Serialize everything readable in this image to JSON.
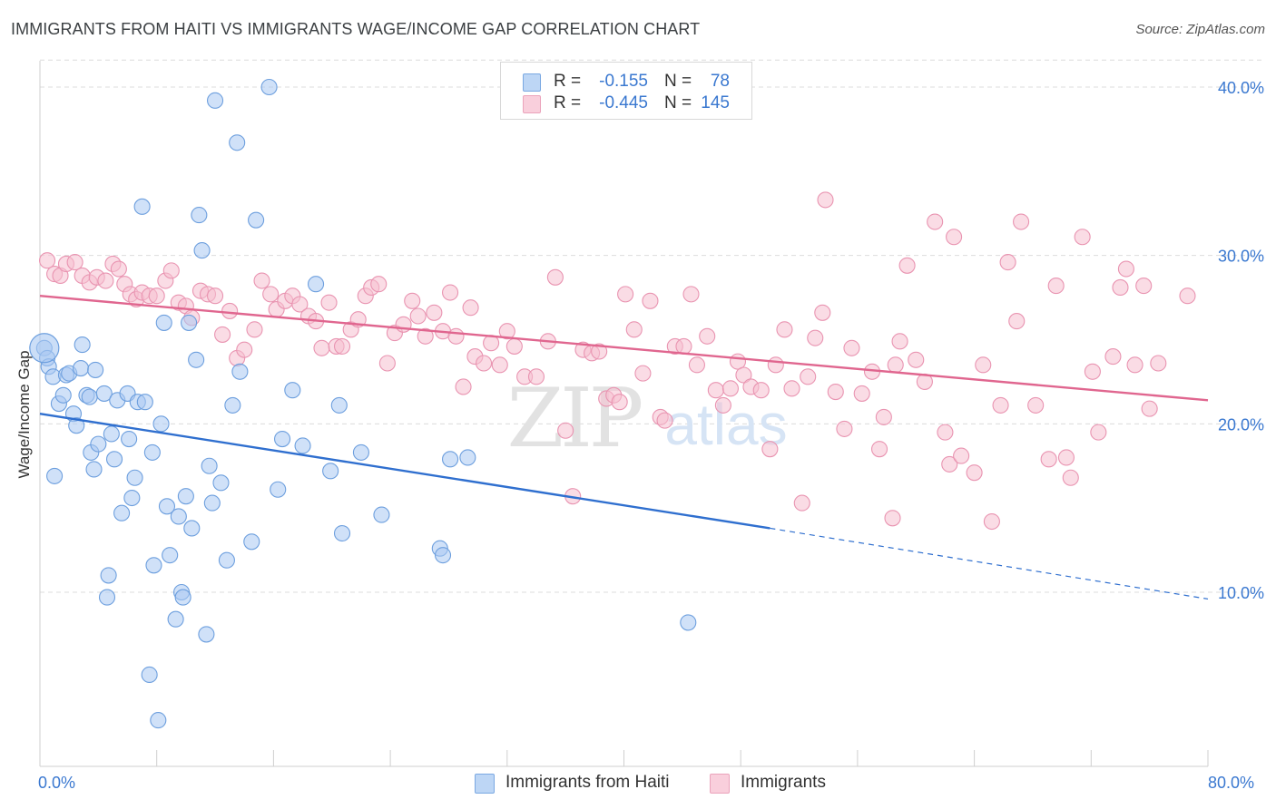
{
  "header": {
    "title": "IMMIGRANTS FROM HAITI VS IMMIGRANTS WAGE/INCOME GAP CORRELATION CHART",
    "source": "Source: ZipAtlas.com"
  },
  "legend": {
    "rows": [
      {
        "r_label": "R =",
        "r_value": "-0.155",
        "n_label": "N =",
        "n_value": "78"
      },
      {
        "r_label": "R =",
        "r_value": "-0.445",
        "n_label": "N =",
        "n_value": "145"
      }
    ]
  },
  "watermark": {
    "zip": "ZIP",
    "atlas": "atlas"
  },
  "x_axis": {
    "min_label": "0.0%",
    "max_label": "80.0%"
  },
  "y_axis": {
    "label": "Wage/Income Gap",
    "ticks": [
      "10.0%",
      "20.0%",
      "30.0%",
      "40.0%"
    ]
  },
  "bottom_legend": {
    "series1": "Immigrants from Haiti",
    "series2": "Immigrants"
  },
  "colors": {
    "blue_fill": "#a9c8f2",
    "blue_stroke": "#6d9fde",
    "blue_line": "#2f6fcf",
    "pink_fill": "#f6bfd0",
    "pink_stroke": "#e994b1",
    "pink_line": "#e0668f",
    "tick_text": "#3a78d0",
    "grid": "#dcdcdc"
  },
  "chart_data": {
    "type": "scatter",
    "title": "IMMIGRANTS FROM HAITI VS IMMIGRANTS WAGE/INCOME GAP CORRELATION CHART",
    "xlabel": "",
    "ylabel": "Wage/Income Gap",
    "xlim": [
      0,
      80
    ],
    "ylim": [
      0,
      42
    ],
    "yticks": [
      10,
      20,
      30,
      40
    ],
    "grid": true,
    "series": [
      {
        "name": "Immigrants from Haiti",
        "r": -0.155,
        "n": 78,
        "trend": {
          "x0": 0,
          "y0": 20.6,
          "x1": 50,
          "y1": 13.8,
          "dashed_to_x": 80,
          "dashed_to_y": 9.6
        },
        "points": [
          [
            0.3,
            24.5
          ],
          [
            0.5,
            23.9
          ],
          [
            0.6,
            23.4
          ],
          [
            0.9,
            22.8
          ],
          [
            1.0,
            16.9
          ],
          [
            1.3,
            21.2
          ],
          [
            1.6,
            21.7
          ],
          [
            1.8,
            22.9
          ],
          [
            2.0,
            23.0
          ],
          [
            2.3,
            20.6
          ],
          [
            2.5,
            19.9
          ],
          [
            2.8,
            23.3
          ],
          [
            2.9,
            24.7
          ],
          [
            3.2,
            21.7
          ],
          [
            3.4,
            21.6
          ],
          [
            3.5,
            18.3
          ],
          [
            3.7,
            17.3
          ],
          [
            3.8,
            23.2
          ],
          [
            4.0,
            18.8
          ],
          [
            4.4,
            21.8
          ],
          [
            4.6,
            9.7
          ],
          [
            4.7,
            11.0
          ],
          [
            4.9,
            19.4
          ],
          [
            5.1,
            17.9
          ],
          [
            5.3,
            21.4
          ],
          [
            5.6,
            14.7
          ],
          [
            6.0,
            21.8
          ],
          [
            6.1,
            19.1
          ],
          [
            6.3,
            15.6
          ],
          [
            6.5,
            16.8
          ],
          [
            6.7,
            21.3
          ],
          [
            7.0,
            32.9
          ],
          [
            7.2,
            21.3
          ],
          [
            7.5,
            5.1
          ],
          [
            7.7,
            18.3
          ],
          [
            7.8,
            11.6
          ],
          [
            8.1,
            2.4
          ],
          [
            8.3,
            20.0
          ],
          [
            8.5,
            26.0
          ],
          [
            8.7,
            15.1
          ],
          [
            8.9,
            12.2
          ],
          [
            9.3,
            8.4
          ],
          [
            9.5,
            14.5
          ],
          [
            9.7,
            10.0
          ],
          [
            9.8,
            9.7
          ],
          [
            10.0,
            15.7
          ],
          [
            10.2,
            26.0
          ],
          [
            10.4,
            13.8
          ],
          [
            10.7,
            23.8
          ],
          [
            10.9,
            32.4
          ],
          [
            11.1,
            30.3
          ],
          [
            11.4,
            7.5
          ],
          [
            11.6,
            17.5
          ],
          [
            11.8,
            15.3
          ],
          [
            12.0,
            39.2
          ],
          [
            12.4,
            16.5
          ],
          [
            12.8,
            11.9
          ],
          [
            13.2,
            21.1
          ],
          [
            13.5,
            36.7
          ],
          [
            13.7,
            23.1
          ],
          [
            14.5,
            13.0
          ],
          [
            14.8,
            32.1
          ],
          [
            15.7,
            40.0
          ],
          [
            16.3,
            16.1
          ],
          [
            16.6,
            19.1
          ],
          [
            17.3,
            22.0
          ],
          [
            18.0,
            18.7
          ],
          [
            18.9,
            28.3
          ],
          [
            19.9,
            17.2
          ],
          [
            20.5,
            21.1
          ],
          [
            20.7,
            13.5
          ],
          [
            22.0,
            18.3
          ],
          [
            23.4,
            14.6
          ],
          [
            27.4,
            12.6
          ],
          [
            27.6,
            12.2
          ],
          [
            28.1,
            17.9
          ],
          [
            29.3,
            18.0
          ],
          [
            44.4,
            8.2
          ]
        ]
      },
      {
        "name": "Immigrants",
        "r": -0.445,
        "n": 145,
        "trend": {
          "x0": 0,
          "y0": 27.6,
          "x1": 80,
          "y1": 21.4
        },
        "points": [
          [
            0.5,
            29.7
          ],
          [
            1.0,
            28.9
          ],
          [
            1.4,
            28.8
          ],
          [
            1.8,
            29.5
          ],
          [
            2.4,
            29.6
          ],
          [
            2.9,
            28.8
          ],
          [
            3.4,
            28.4
          ],
          [
            3.9,
            28.7
          ],
          [
            4.5,
            28.5
          ],
          [
            5.0,
            29.5
          ],
          [
            5.4,
            29.2
          ],
          [
            5.8,
            28.3
          ],
          [
            6.2,
            27.7
          ],
          [
            6.6,
            27.4
          ],
          [
            7.0,
            27.8
          ],
          [
            7.5,
            27.6
          ],
          [
            8.0,
            27.6
          ],
          [
            8.6,
            28.5
          ],
          [
            9.0,
            29.1
          ],
          [
            9.5,
            27.2
          ],
          [
            10.0,
            27.0
          ],
          [
            10.4,
            26.3
          ],
          [
            11.0,
            27.9
          ],
          [
            11.5,
            27.7
          ],
          [
            12.0,
            27.6
          ],
          [
            12.5,
            25.3
          ],
          [
            13.0,
            26.7
          ],
          [
            13.5,
            23.9
          ],
          [
            14.0,
            24.4
          ],
          [
            14.7,
            25.6
          ],
          [
            15.2,
            28.5
          ],
          [
            15.8,
            27.7
          ],
          [
            16.2,
            26.8
          ],
          [
            16.8,
            27.3
          ],
          [
            17.3,
            27.6
          ],
          [
            17.8,
            27.1
          ],
          [
            18.4,
            26.4
          ],
          [
            18.9,
            26.1
          ],
          [
            19.3,
            24.5
          ],
          [
            19.8,
            27.2
          ],
          [
            20.3,
            24.6
          ],
          [
            20.7,
            24.6
          ],
          [
            21.3,
            25.6
          ],
          [
            21.8,
            26.2
          ],
          [
            22.3,
            27.6
          ],
          [
            22.7,
            28.1
          ],
          [
            23.2,
            28.3
          ],
          [
            23.8,
            23.6
          ],
          [
            24.3,
            25.4
          ],
          [
            24.9,
            25.9
          ],
          [
            25.5,
            27.3
          ],
          [
            25.9,
            26.4
          ],
          [
            26.4,
            25.2
          ],
          [
            27.0,
            26.6
          ],
          [
            27.6,
            25.5
          ],
          [
            28.1,
            27.8
          ],
          [
            28.5,
            25.2
          ],
          [
            29.0,
            22.2
          ],
          [
            29.5,
            26.9
          ],
          [
            29.8,
            24.0
          ],
          [
            30.4,
            23.6
          ],
          [
            30.9,
            24.8
          ],
          [
            31.5,
            23.5
          ],
          [
            32.0,
            25.5
          ],
          [
            32.5,
            24.6
          ],
          [
            33.2,
            22.8
          ],
          [
            34.0,
            22.8
          ],
          [
            34.8,
            24.9
          ],
          [
            35.3,
            28.7
          ],
          [
            36.0,
            19.6
          ],
          [
            36.5,
            15.7
          ],
          [
            37.2,
            24.4
          ],
          [
            37.8,
            24.2
          ],
          [
            38.3,
            24.3
          ],
          [
            38.8,
            21.5
          ],
          [
            39.3,
            21.7
          ],
          [
            39.7,
            21.3
          ],
          [
            40.1,
            27.7
          ],
          [
            40.7,
            25.6
          ],
          [
            41.3,
            23.0
          ],
          [
            41.8,
            27.3
          ],
          [
            42.5,
            20.4
          ],
          [
            42.8,
            20.2
          ],
          [
            43.5,
            24.6
          ],
          [
            44.1,
            24.6
          ],
          [
            44.6,
            27.7
          ],
          [
            45.0,
            23.5
          ],
          [
            45.7,
            25.2
          ],
          [
            46.3,
            22.0
          ],
          [
            46.8,
            21.1
          ],
          [
            47.3,
            22.1
          ],
          [
            47.8,
            23.7
          ],
          [
            48.2,
            22.9
          ],
          [
            48.7,
            22.2
          ],
          [
            49.4,
            22.0
          ],
          [
            50.0,
            18.5
          ],
          [
            50.4,
            23.5
          ],
          [
            51.0,
            25.6
          ],
          [
            51.5,
            22.1
          ],
          [
            52.2,
            15.3
          ],
          [
            52.6,
            22.8
          ],
          [
            53.1,
            25.1
          ],
          [
            53.6,
            26.6
          ],
          [
            53.8,
            33.3
          ],
          [
            54.5,
            21.9
          ],
          [
            55.1,
            19.7
          ],
          [
            55.6,
            24.5
          ],
          [
            56.3,
            21.8
          ],
          [
            57.0,
            23.1
          ],
          [
            57.5,
            18.5
          ],
          [
            57.8,
            20.4
          ],
          [
            58.4,
            14.4
          ],
          [
            58.9,
            24.9
          ],
          [
            59.4,
            29.4
          ],
          [
            60.0,
            23.8
          ],
          [
            60.6,
            22.5
          ],
          [
            61.3,
            32.0
          ],
          [
            62.0,
            19.5
          ],
          [
            62.3,
            17.6
          ],
          [
            62.6,
            31.1
          ],
          [
            63.1,
            18.1
          ],
          [
            64.0,
            17.1
          ],
          [
            64.6,
            23.5
          ],
          [
            65.2,
            14.2
          ],
          [
            65.8,
            21.1
          ],
          [
            66.3,
            29.6
          ],
          [
            66.9,
            26.1
          ],
          [
            67.2,
            32.0
          ],
          [
            68.2,
            21.1
          ],
          [
            69.1,
            17.9
          ],
          [
            69.6,
            28.2
          ],
          [
            70.3,
            18.0
          ],
          [
            70.6,
            16.8
          ],
          [
            71.4,
            31.1
          ],
          [
            72.1,
            23.1
          ],
          [
            72.5,
            19.5
          ],
          [
            73.5,
            24.0
          ],
          [
            74.0,
            28.1
          ],
          [
            74.4,
            29.2
          ],
          [
            75.0,
            23.5
          ],
          [
            75.6,
            28.2
          ],
          [
            76.0,
            20.9
          ],
          [
            76.6,
            23.6
          ],
          [
            78.6,
            27.6
          ],
          [
            58.6,
            23.5
          ]
        ]
      }
    ]
  }
}
